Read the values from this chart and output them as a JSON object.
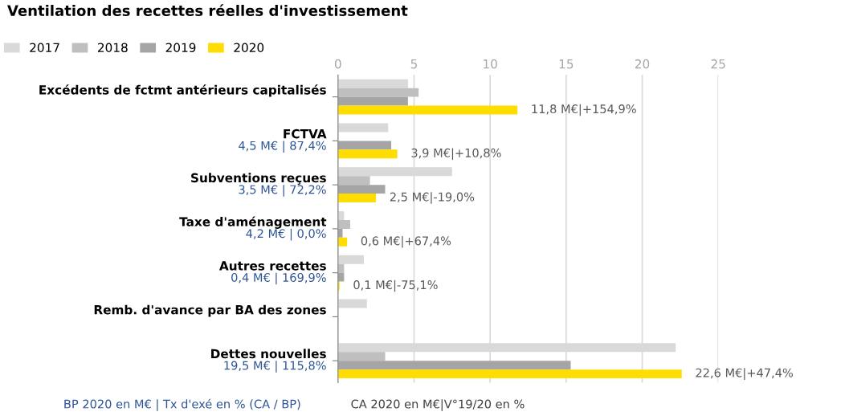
{
  "chart_data": {
    "type": "bar",
    "orientation": "horizontal",
    "title": "Ventilation des recettes réelles d'investissement",
    "categories": [
      "Excédents de fctmt antérieurs capitalisés",
      "FCTVA\n4,5 M€ | 87,4%",
      "Subventions reçues\n3,5 M€ | 72,2%",
      "Taxe d'aménagement\n4,2 M€ | 0,0%",
      "Autres recettes\n0,4 M€ | 169,9%",
      "Remb. d'avance par BA des zones",
      "Dettes nouvelles\n19,5 M€ | 115,8%"
    ],
    "series": [
      {
        "name": "2017",
        "color": "#d9d9d9",
        "values": [
          4.6,
          3.3,
          7.5,
          0.4,
          1.7,
          1.9,
          22.2
        ]
      },
      {
        "name": "2018",
        "color": "#bfbfbf",
        "values": [
          5.3,
          null,
          2.1,
          0.8,
          0.4,
          null,
          3.1
        ]
      },
      {
        "name": "2019",
        "color": "#a5a5a5",
        "values": [
          4.6,
          3.5,
          3.1,
          0.3,
          0.4,
          null,
          15.3
        ]
      },
      {
        "name": "2020",
        "color": "#ffdd00",
        "values": [
          11.8,
          3.9,
          2.5,
          0.6,
          0.1,
          null,
          22.6
        ],
        "value_labels": [
          "11,8 M€|+154,9%",
          "3,9 M€|+10,8%",
          "2,5 M€|-19,0%",
          "0,6 M€|+67,4%",
          "0,1 M€|-75,1%",
          null,
          "22,6 M€|+47,4%"
        ]
      }
    ],
    "xlim": [
      0,
      25
    ],
    "xticks": [
      0,
      5,
      10,
      15,
      20,
      25
    ],
    "grid": "x",
    "legend": "top left",
    "annotations": [
      "BP 2020 en M€ | Tx d'exé en % (CA / BP)",
      "CA 2020 en M€|V°19/20 en %"
    ]
  }
}
